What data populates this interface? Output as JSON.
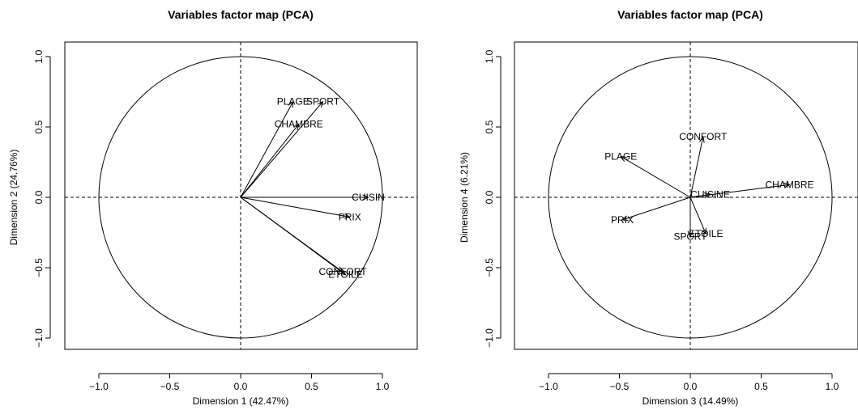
{
  "chart_data": [
    {
      "type": "scatter",
      "title": "Variables factor map (PCA)",
      "xlabel": "Dimension 1 (42.47%)",
      "ylabel": "Dimension 2 (24.76%)",
      "xlim": [
        -1.0,
        1.0
      ],
      "ylim": [
        -1.0,
        1.0
      ],
      "xticks": [
        "−1.0",
        "−0.5",
        "0.0",
        "0.5",
        "1.0"
      ],
      "yticks": [
        "−1.0",
        "−0.5",
        "0.0",
        "0.5",
        "1.0"
      ],
      "unit_circle": true,
      "variables": [
        {
          "label": "PLAGE",
          "x": 0.37,
          "y": 0.68
        },
        {
          "label": "SPORT",
          "x": 0.58,
          "y": 0.68
        },
        {
          "label": "CHAMBRE",
          "x": 0.41,
          "y": 0.52
        },
        {
          "label": "CUISIN",
          "x": 0.9,
          "y": 0.0
        },
        {
          "label": "PRIX",
          "x": 0.77,
          "y": -0.14
        },
        {
          "label": "CONFORT",
          "x": 0.72,
          "y": -0.53
        },
        {
          "label": "ETOILE",
          "x": 0.74,
          "y": -0.55
        }
      ]
    },
    {
      "type": "scatter",
      "title": "Variables factor map (PCA)",
      "xlabel": "Dimension 3 (14.49%)",
      "ylabel": "Dimension 4 (6.21%)",
      "xlim": [
        -1.0,
        1.0
      ],
      "ylim": [
        -1.0,
        1.0
      ],
      "xticks": [
        "−1.0",
        "−0.5",
        "0.0",
        "0.5",
        "1.0"
      ],
      "yticks": [
        "−1.0",
        "−0.5",
        "0.0",
        "0.5",
        "1.0"
      ],
      "unit_circle": true,
      "variables": [
        {
          "label": "CONFORT",
          "x": 0.09,
          "y": 0.43
        },
        {
          "label": "PLAGE",
          "x": -0.49,
          "y": 0.29
        },
        {
          "label": "CHAMBRE",
          "x": 0.7,
          "y": 0.09
        },
        {
          "label": "CUISINE",
          "x": 0.14,
          "y": 0.02
        },
        {
          "label": "PRIX",
          "x": -0.48,
          "y": -0.16
        },
        {
          "label": "ETOILE",
          "x": 0.11,
          "y": -0.26
        },
        {
          "label": "SPORT",
          "x": 0.0,
          "y": -0.28
        }
      ]
    }
  ]
}
